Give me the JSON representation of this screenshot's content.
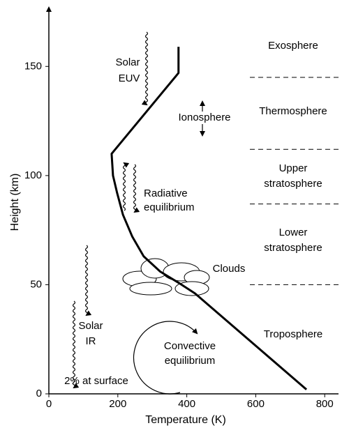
{
  "chart_data": {
    "type": "line",
    "xlabel": "Temperature (K)",
    "ylabel": "Height (km)",
    "x": [
      747,
      424,
      375,
      323,
      275,
      242,
      215,
      198,
      186,
      182,
      376,
      376
    ],
    "series": [
      {
        "color": "#000000",
        "values": [
          2,
          46,
          51,
          56,
          63,
          72,
          82,
          92,
          100,
          110,
          147,
          159
        ]
      }
    ],
    "xlim": [
      0,
      840
    ],
    "ylim": [
      0,
      175
    ],
    "xticks": [
      0,
      200,
      400,
      600,
      800
    ],
    "yticks": [
      0,
      50,
      100,
      150
    ],
    "layer_boundaries": [
      145,
      112,
      87,
      50
    ],
    "layers": [
      [
        "Exosphere"
      ],
      [
        "Thermosphere"
      ],
      [
        "Upper",
        "stratosphere"
      ],
      [
        "Lower",
        "stratosphere"
      ],
      [
        "Troposphere"
      ]
    ],
    "annotations": {
      "solar_euv": [
        "Solar",
        "EUV"
      ],
      "ionosphere": [
        "Ionosphere"
      ],
      "radiative": [
        "Radiative",
        "equilibrium"
      ],
      "clouds": [
        "Clouds"
      ],
      "solar_ir": [
        "Solar",
        "IR"
      ],
      "surface": [
        "2% at surface"
      ],
      "convective": [
        "Convective",
        "equilibrium"
      ]
    }
  }
}
